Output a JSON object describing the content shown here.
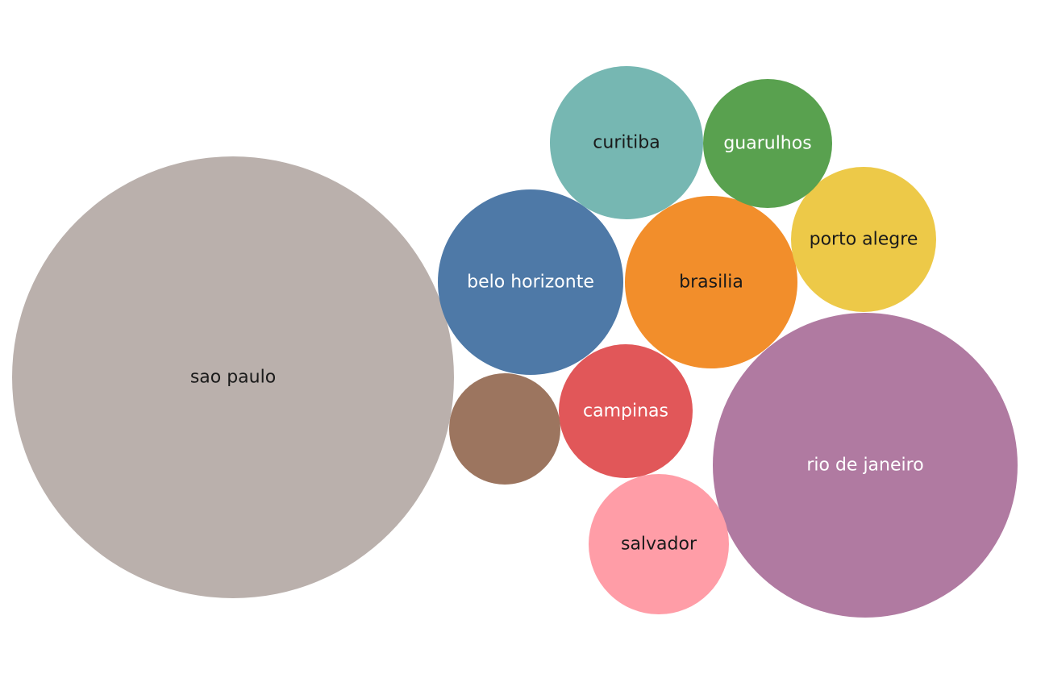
{
  "chart_data": {
    "type": "bubble",
    "title": "",
    "bubbles": [
      {
        "label": "sao paulo",
        "color": "#bab0ac",
        "label_color": "#1a1a1a",
        "value": 100
      },
      {
        "label": "rio de janeiro",
        "color": "#b07aa1",
        "label_color": "#ffffff",
        "value": 47.6
      },
      {
        "label": "belo horizonte",
        "color": "#4e79a7",
        "label_color": "#ffffff",
        "value": 17.7
      },
      {
        "label": "brasilia",
        "color": "#f28e2b",
        "label_color": "#1a1a1a",
        "value": 15.3
      },
      {
        "label": "curitiba",
        "color": "#76b7b2",
        "label_color": "#1a1a1a",
        "value": 12.0
      },
      {
        "label": "porto alegre",
        "color": "#edc948",
        "label_color": "#1a1a1a",
        "value": 10.8
      },
      {
        "label": "salvador",
        "color": "#ff9da7",
        "label_color": "#1a1a1a",
        "value": 10.0
      },
      {
        "label": "campinas",
        "color": "#e15759",
        "label_color": "#ffffff",
        "value": 9.2
      },
      {
        "label": "guarulhos",
        "color": "#59a14f",
        "label_color": "#ffffff",
        "value": 8.5
      },
      {
        "label": "",
        "color": "#9c755f",
        "label_color": "#1a1a1a",
        "value": 6.4
      }
    ]
  }
}
